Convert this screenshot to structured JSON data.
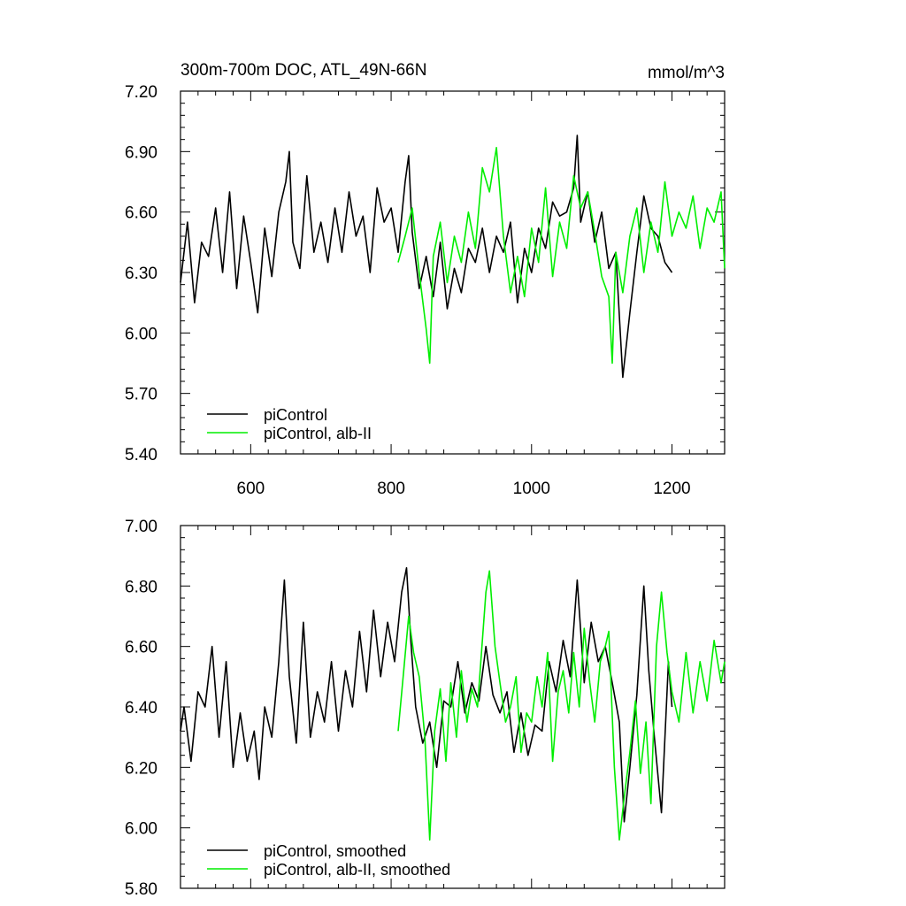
{
  "chart_data": [
    {
      "type": "line",
      "title": "300m-700m DOC, ATL_49N-66N",
      "units": "mmol/m^3",
      "xlim": [
        500,
        1275
      ],
      "ylim": [
        5.4,
        7.2
      ],
      "xticks": [
        600,
        800,
        1000,
        1200
      ],
      "xticklabels": [
        "600",
        "800",
        "1000",
        "1200"
      ],
      "yticks": [
        5.4,
        5.7,
        6.0,
        6.3,
        6.6,
        6.9,
        7.2
      ],
      "yticklabels": [
        "5.40",
        "5.70",
        "6.00",
        "6.30",
        "6.60",
        "6.90",
        "7.20"
      ],
      "legend_position": "bottom-left",
      "series": [
        {
          "name": "piControl",
          "color": "#000000",
          "x": [
            500,
            510,
            520,
            530,
            540,
            550,
            560,
            570,
            580,
            590,
            600,
            610,
            620,
            630,
            640,
            650,
            655,
            660,
            670,
            680,
            690,
            700,
            710,
            720,
            730,
            740,
            750,
            760,
            770,
            780,
            790,
            800,
            810,
            820,
            825,
            830,
            840,
            850,
            860,
            870,
            880,
            890,
            900,
            910,
            920,
            930,
            940,
            950,
            960,
            970,
            980,
            990,
            1000,
            1010,
            1020,
            1030,
            1040,
            1050,
            1060,
            1065,
            1070,
            1080,
            1090,
            1100,
            1110,
            1120,
            1130,
            1140,
            1150,
            1160,
            1170,
            1180,
            1190,
            1200
          ],
          "y": [
            6.25,
            6.55,
            6.15,
            6.45,
            6.38,
            6.62,
            6.3,
            6.7,
            6.22,
            6.58,
            6.35,
            6.1,
            6.52,
            6.28,
            6.6,
            6.75,
            6.9,
            6.45,
            6.32,
            6.78,
            6.4,
            6.55,
            6.35,
            6.62,
            6.4,
            6.7,
            6.48,
            6.58,
            6.3,
            6.72,
            6.55,
            6.62,
            6.4,
            6.75,
            6.88,
            6.5,
            6.22,
            6.38,
            6.18,
            6.45,
            6.12,
            6.32,
            6.2,
            6.42,
            6.35,
            6.52,
            6.3,
            6.48,
            6.4,
            6.55,
            6.15,
            6.42,
            6.3,
            6.52,
            6.42,
            6.65,
            6.58,
            6.6,
            6.72,
            6.98,
            6.55,
            6.7,
            6.45,
            6.6,
            6.32,
            6.4,
            5.78,
            6.1,
            6.4,
            6.68,
            6.52,
            6.48,
            6.35,
            6.3
          ]
        },
        {
          "name": "piControl, alb-II",
          "color": "#00ee00",
          "x": [
            810,
            820,
            830,
            840,
            850,
            855,
            860,
            870,
            880,
            890,
            900,
            910,
            920,
            930,
            940,
            950,
            960,
            970,
            980,
            990,
            1000,
            1010,
            1020,
            1030,
            1040,
            1050,
            1060,
            1070,
            1080,
            1090,
            1100,
            1110,
            1115,
            1120,
            1130,
            1140,
            1150,
            1160,
            1170,
            1180,
            1190,
            1200,
            1210,
            1220,
            1230,
            1240,
            1250,
            1260,
            1270,
            1275
          ],
          "y": [
            6.35,
            6.48,
            6.62,
            6.3,
            6.02,
            5.85,
            6.38,
            6.55,
            6.25,
            6.48,
            6.35,
            6.6,
            6.42,
            6.82,
            6.7,
            6.92,
            6.48,
            6.2,
            6.38,
            6.18,
            6.52,
            6.35,
            6.72,
            6.28,
            6.55,
            6.42,
            6.78,
            6.62,
            6.7,
            6.5,
            6.28,
            6.18,
            5.85,
            6.4,
            6.2,
            6.48,
            6.62,
            6.3,
            6.55,
            6.4,
            6.75,
            6.48,
            6.6,
            6.52,
            6.68,
            6.42,
            6.62,
            6.55,
            6.7,
            6.32
          ]
        }
      ]
    },
    {
      "type": "line",
      "xlim": [
        500,
        1275
      ],
      "ylim": [
        5.8,
        7.0
      ],
      "xticks": [
        600,
        800,
        1000,
        1200
      ],
      "yticks": [
        5.8,
        6.0,
        6.2,
        6.4,
        6.6,
        6.8,
        7.0
      ],
      "yticklabels": [
        "5.80",
        "6.00",
        "6.20",
        "6.40",
        "6.60",
        "6.80",
        "7.00"
      ],
      "legend_position": "bottom-left",
      "series": [
        {
          "name": "piControl, smoothed",
          "color": "#000000",
          "x": [
            500,
            505,
            515,
            525,
            535,
            545,
            555,
            565,
            575,
            585,
            595,
            605,
            612,
            620,
            630,
            640,
            648,
            655,
            665,
            675,
            685,
            695,
            705,
            715,
            725,
            735,
            745,
            755,
            765,
            775,
            785,
            795,
            805,
            815,
            822,
            828,
            835,
            845,
            855,
            865,
            875,
            885,
            895,
            905,
            915,
            925,
            935,
            945,
            955,
            965,
            975,
            985,
            995,
            1005,
            1015,
            1025,
            1035,
            1045,
            1055,
            1065,
            1075,
            1085,
            1095,
            1105,
            1115,
            1125,
            1132,
            1140,
            1150,
            1160,
            1167,
            1175,
            1185,
            1195,
            1200
          ],
          "y": [
            6.32,
            6.4,
            6.22,
            6.45,
            6.4,
            6.6,
            6.3,
            6.55,
            6.2,
            6.38,
            6.22,
            6.32,
            6.16,
            6.4,
            6.3,
            6.55,
            6.82,
            6.5,
            6.28,
            6.68,
            6.3,
            6.45,
            6.35,
            6.55,
            6.32,
            6.52,
            6.4,
            6.65,
            6.45,
            6.72,
            6.5,
            6.68,
            6.55,
            6.78,
            6.86,
            6.62,
            6.4,
            6.28,
            6.35,
            6.2,
            6.42,
            6.4,
            6.55,
            6.38,
            6.48,
            6.42,
            6.6,
            6.44,
            6.38,
            6.45,
            6.25,
            6.38,
            6.24,
            6.34,
            6.32,
            6.55,
            6.45,
            6.62,
            6.5,
            6.82,
            6.48,
            6.68,
            6.55,
            6.6,
            6.48,
            6.35,
            6.02,
            6.2,
            6.44,
            6.8,
            6.52,
            6.3,
            6.05,
            6.55,
            6.4
          ]
        },
        {
          "name": "piControl, alb-II, smoothed",
          "color": "#00ee00",
          "x": [
            810,
            818,
            825,
            832,
            840,
            848,
            855,
            862,
            870,
            878,
            885,
            893,
            900,
            908,
            915,
            923,
            930,
            935,
            940,
            948,
            955,
            963,
            970,
            978,
            985,
            993,
            1000,
            1008,
            1015,
            1023,
            1030,
            1038,
            1045,
            1053,
            1060,
            1068,
            1075,
            1083,
            1090,
            1098,
            1105,
            1110,
            1118,
            1125,
            1133,
            1140,
            1148,
            1155,
            1163,
            1170,
            1178,
            1185,
            1193,
            1200,
            1210,
            1220,
            1230,
            1240,
            1250,
            1260,
            1270,
            1275
          ],
          "y": [
            6.32,
            6.52,
            6.7,
            6.58,
            6.5,
            6.3,
            5.96,
            6.32,
            6.46,
            6.22,
            6.48,
            6.3,
            6.52,
            6.35,
            6.46,
            6.4,
            6.62,
            6.78,
            6.85,
            6.6,
            6.48,
            6.35,
            6.4,
            6.5,
            6.25,
            6.38,
            6.35,
            6.5,
            6.4,
            6.58,
            6.22,
            6.45,
            6.52,
            6.38,
            6.58,
            6.4,
            6.66,
            6.48,
            6.35,
            6.55,
            6.6,
            6.65,
            6.2,
            5.96,
            6.12,
            6.25,
            6.42,
            6.18,
            6.35,
            6.08,
            6.6,
            6.78,
            6.58,
            6.45,
            6.35,
            6.58,
            6.38,
            6.55,
            6.42,
            6.62,
            6.48,
            6.55
          ]
        }
      ]
    }
  ]
}
